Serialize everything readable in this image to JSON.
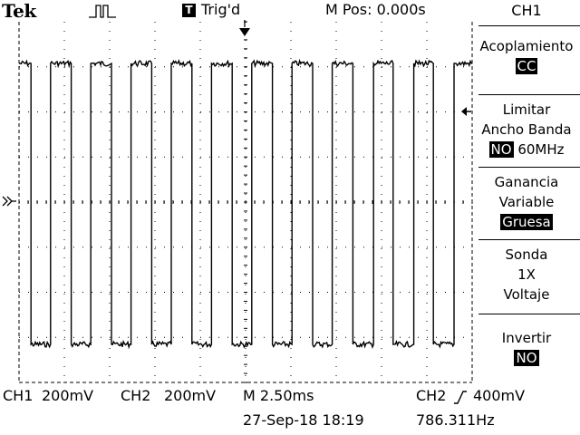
{
  "header": {
    "brand": "Tek",
    "acquire_icon": "acquisition-pulse-icon",
    "trigger_badge": "T",
    "trigger_status": "Trig'd",
    "position": "M Pos: 0.000s"
  },
  "menu": {
    "title": "CH1",
    "coupling": {
      "label": "Acoplamiento",
      "value": "CC"
    },
    "bandwidth": {
      "label_line1": "Limitar",
      "label_line2": "Ancho Banda",
      "value": "NO",
      "extra": "60MHz"
    },
    "gain": {
      "label_line1": "Ganancia",
      "label_line2": "Variable",
      "value": "Gruesa"
    },
    "probe": {
      "label": "Sonda",
      "value": "1X",
      "unit": "Voltaje"
    },
    "invert": {
      "label": "Invertir",
      "value": "NO"
    }
  },
  "status": {
    "ch1_label": "CH1",
    "ch1_scale": "200mV",
    "ch2_label": "CH2",
    "ch2_scale": "200mV",
    "timebase": "M 2.50ms",
    "trigger_source": "CH2",
    "trigger_level": "400mV",
    "datetime": "27-Sep-18 18:19",
    "frequency": "786.311Hz"
  },
  "colors": {
    "trace": "#000000",
    "grid": "#000000",
    "background": "#ffffff"
  }
}
